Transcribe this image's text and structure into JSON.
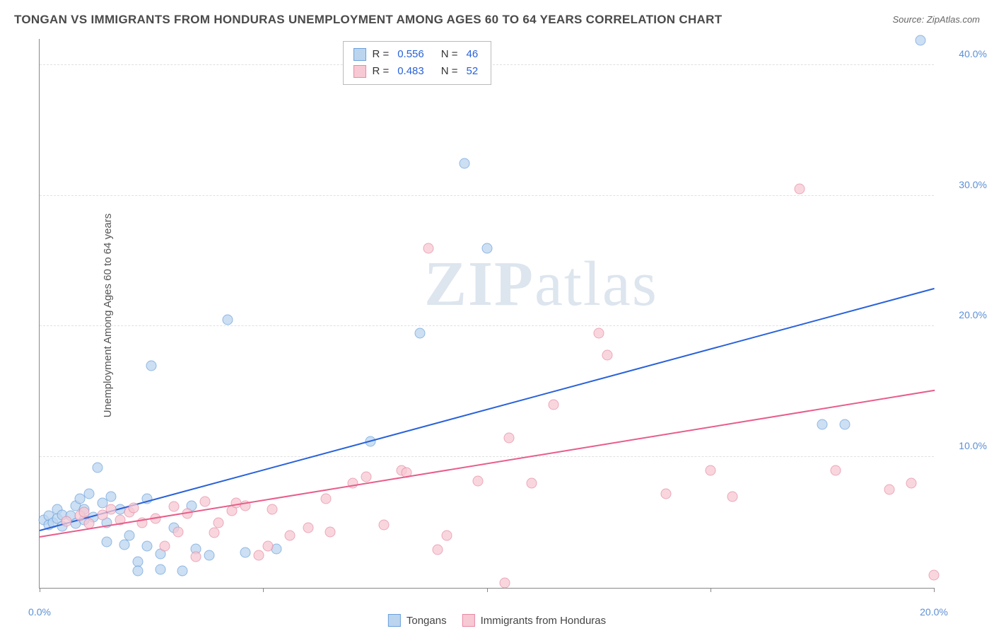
{
  "title": "TONGAN VS IMMIGRANTS FROM HONDURAS UNEMPLOYMENT AMONG AGES 60 TO 64 YEARS CORRELATION CHART",
  "source": "Source: ZipAtlas.com",
  "ylabel": "Unemployment Among Ages 60 to 64 years",
  "watermark_a": "ZIP",
  "watermark_b": "atlas",
  "chart": {
    "type": "scatter",
    "xlim": [
      0,
      20
    ],
    "ylim": [
      0,
      42
    ],
    "xticks": [
      0,
      20
    ],
    "xtick_labels": [
      "0.0%",
      "20.0%"
    ],
    "xtick_marks": [
      0,
      5,
      10,
      15,
      20
    ],
    "yticks": [
      10,
      20,
      30,
      40
    ],
    "ytick_labels": [
      "10.0%",
      "20.0%",
      "30.0%",
      "40.0%"
    ],
    "grid_color": "#e0e0e0",
    "axis_color": "#888888",
    "background_color": "#ffffff",
    "label_fontsize": 15,
    "tick_fontsize": 14,
    "title_fontsize": 17,
    "tick_color": "#5b8fd6"
  },
  "series": [
    {
      "name": "Tongans",
      "fill": "#bcd5ef",
      "stroke": "#6aa0da",
      "line_color": "#2962d9",
      "R": "0.556",
      "N": "46",
      "trend": {
        "x1": 0,
        "y1": 4.5,
        "x2": 20,
        "y2": 23.0
      },
      "points": [
        [
          0.1,
          5.2
        ],
        [
          0.2,
          5.5
        ],
        [
          0.2,
          4.8
        ],
        [
          0.3,
          5.0
        ],
        [
          0.4,
          6.0
        ],
        [
          0.4,
          5.3
        ],
        [
          0.5,
          4.7
        ],
        [
          0.5,
          5.6
        ],
        [
          0.7,
          5.5
        ],
        [
          0.8,
          6.3
        ],
        [
          0.8,
          4.9
        ],
        [
          0.9,
          6.8
        ],
        [
          1.0,
          5.2
        ],
        [
          1.0,
          6.0
        ],
        [
          1.1,
          7.2
        ],
        [
          1.2,
          5.4
        ],
        [
          1.3,
          9.2
        ],
        [
          1.4,
          6.5
        ],
        [
          1.5,
          5.0
        ],
        [
          1.5,
          3.5
        ],
        [
          1.6,
          7.0
        ],
        [
          1.8,
          6.0
        ],
        [
          1.9,
          3.3
        ],
        [
          2.0,
          4.0
        ],
        [
          2.2,
          2.0
        ],
        [
          2.2,
          1.3
        ],
        [
          2.4,
          6.8
        ],
        [
          2.4,
          3.2
        ],
        [
          2.5,
          17.0
        ],
        [
          2.7,
          2.6
        ],
        [
          2.7,
          1.4
        ],
        [
          3.0,
          4.6
        ],
        [
          3.2,
          1.3
        ],
        [
          3.4,
          6.3
        ],
        [
          3.5,
          3.0
        ],
        [
          3.8,
          2.5
        ],
        [
          4.2,
          20.5
        ],
        [
          4.6,
          2.7
        ],
        [
          5.3,
          3.0
        ],
        [
          7.4,
          11.2
        ],
        [
          8.5,
          19.5
        ],
        [
          9.5,
          32.5
        ],
        [
          10.0,
          26.0
        ],
        [
          17.5,
          12.5
        ],
        [
          18.0,
          12.5
        ],
        [
          19.7,
          41.9
        ]
      ]
    },
    {
      "name": "Immigrants from Honduras",
      "fill": "#f7c9d4",
      "stroke": "#e68aa3",
      "line_color": "#e85d8a",
      "R": "0.483",
      "N": "52",
      "trend": {
        "x1": 0,
        "y1": 4.0,
        "x2": 20,
        "y2": 15.2
      },
      "points": [
        [
          0.6,
          5.1
        ],
        [
          0.9,
          5.5
        ],
        [
          1.0,
          5.8
        ],
        [
          1.1,
          4.9
        ],
        [
          1.4,
          5.6
        ],
        [
          1.6,
          6.0
        ],
        [
          1.8,
          5.2
        ],
        [
          2.0,
          5.8
        ],
        [
          2.1,
          6.1
        ],
        [
          2.3,
          5.0
        ],
        [
          2.6,
          5.3
        ],
        [
          2.8,
          3.2
        ],
        [
          3.0,
          6.2
        ],
        [
          3.1,
          4.3
        ],
        [
          3.3,
          5.7
        ],
        [
          3.5,
          2.4
        ],
        [
          3.7,
          6.6
        ],
        [
          3.9,
          4.2
        ],
        [
          4.0,
          5.0
        ],
        [
          4.3,
          5.9
        ],
        [
          4.4,
          6.5
        ],
        [
          4.6,
          6.3
        ],
        [
          4.9,
          2.5
        ],
        [
          5.1,
          3.2
        ],
        [
          5.2,
          6.0
        ],
        [
          5.6,
          4.0
        ],
        [
          6.0,
          4.6
        ],
        [
          6.4,
          6.8
        ],
        [
          6.5,
          4.3
        ],
        [
          7.0,
          8.0
        ],
        [
          7.3,
          8.5
        ],
        [
          7.7,
          4.8
        ],
        [
          8.1,
          9.0
        ],
        [
          8.2,
          8.8
        ],
        [
          8.7,
          26.0
        ],
        [
          8.9,
          2.9
        ],
        [
          9.1,
          4.0
        ],
        [
          9.8,
          8.2
        ],
        [
          10.4,
          0.4
        ],
        [
          10.5,
          11.5
        ],
        [
          11.0,
          8.0
        ],
        [
          11.5,
          14.0
        ],
        [
          12.5,
          19.5
        ],
        [
          12.7,
          17.8
        ],
        [
          14.0,
          7.2
        ],
        [
          15.0,
          9.0
        ],
        [
          15.5,
          7.0
        ],
        [
          17.0,
          30.5
        ],
        [
          17.8,
          9.0
        ],
        [
          19.0,
          7.5
        ],
        [
          19.5,
          8.0
        ],
        [
          20.0,
          1.0
        ]
      ]
    }
  ],
  "legend_top": {
    "R_label": "R =",
    "N_label": "N ="
  },
  "legend_bottom": {
    "items": [
      "Tongans",
      "Immigrants from Honduras"
    ]
  }
}
